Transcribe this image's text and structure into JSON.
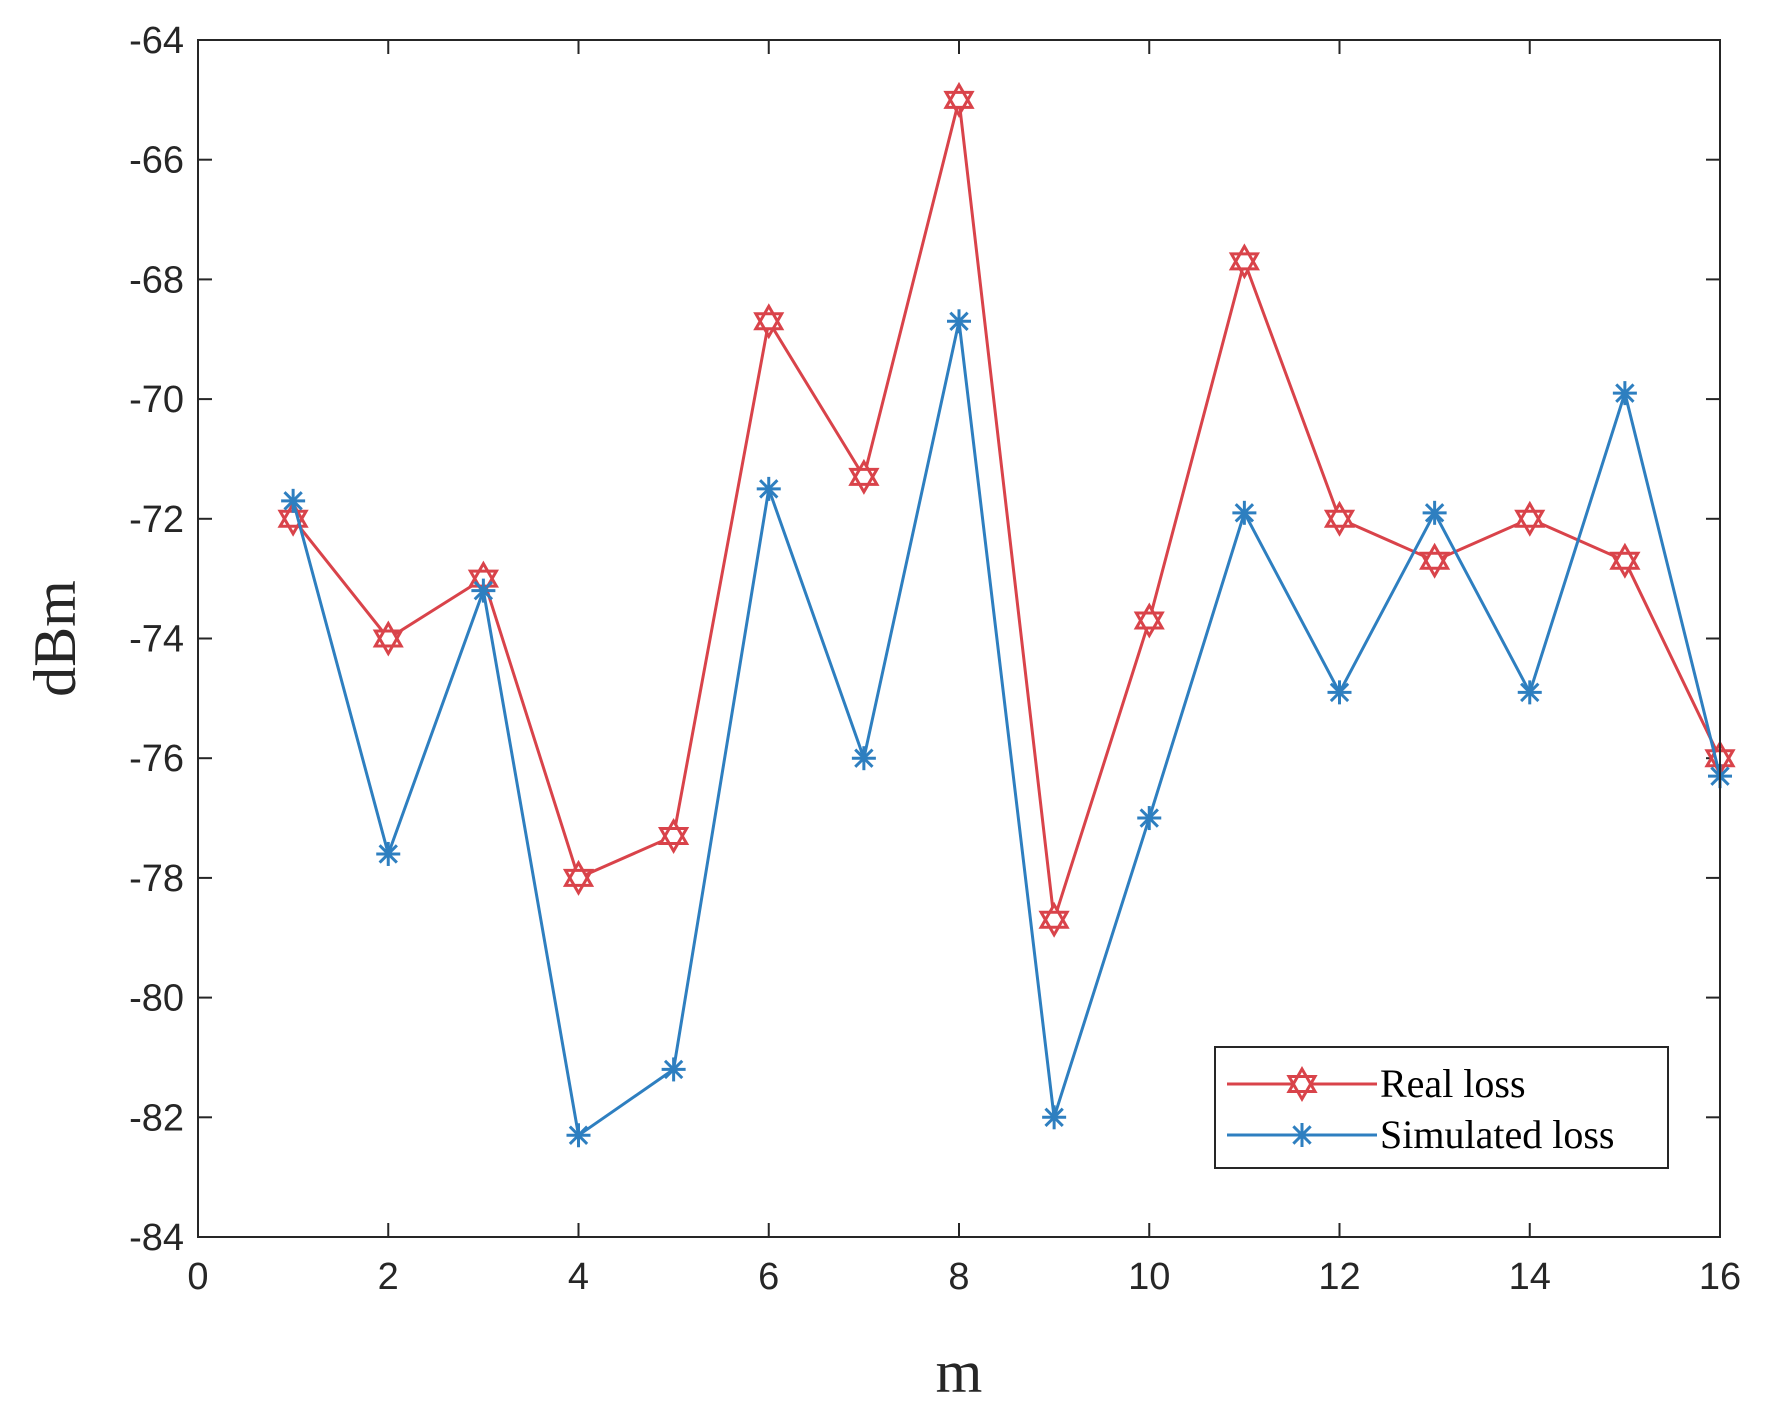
{
  "chart_data": {
    "type": "line",
    "title": "",
    "xlabel": "m",
    "ylabel": "dBm",
    "xlim": [
      0,
      16
    ],
    "ylim": [
      -84,
      -64
    ],
    "xticks": [
      0,
      2,
      4,
      6,
      8,
      10,
      12,
      14,
      16
    ],
    "yticks": [
      -84,
      -82,
      -80,
      -78,
      -76,
      -74,
      -72,
      -70,
      -68,
      -66,
      -64
    ],
    "grid": false,
    "legend_position": "bottom-right",
    "x": [
      1,
      2,
      3,
      4,
      5,
      6,
      7,
      8,
      9,
      10,
      11,
      12,
      13,
      14,
      15,
      16
    ],
    "series": [
      {
        "name": "Real loss",
        "color": "#d9434a",
        "marker": "hexagram",
        "values": [
          -72.0,
          -74.0,
          -73.0,
          -78.0,
          -77.3,
          -68.7,
          -71.3,
          -65.0,
          -78.7,
          -73.7,
          -67.7,
          -72.0,
          -72.7,
          -72.0,
          -72.7,
          -76.0
        ]
      },
      {
        "name": "Simulated loss",
        "color": "#2e7fc0",
        "marker": "asterisk",
        "values": [
          -71.7,
          -77.6,
          -73.2,
          -82.3,
          -81.2,
          -71.5,
          -76.0,
          -68.7,
          -82.0,
          -77.0,
          -71.9,
          -74.9,
          -71.9,
          -74.9,
          -69.9,
          -76.3
        ]
      }
    ]
  }
}
